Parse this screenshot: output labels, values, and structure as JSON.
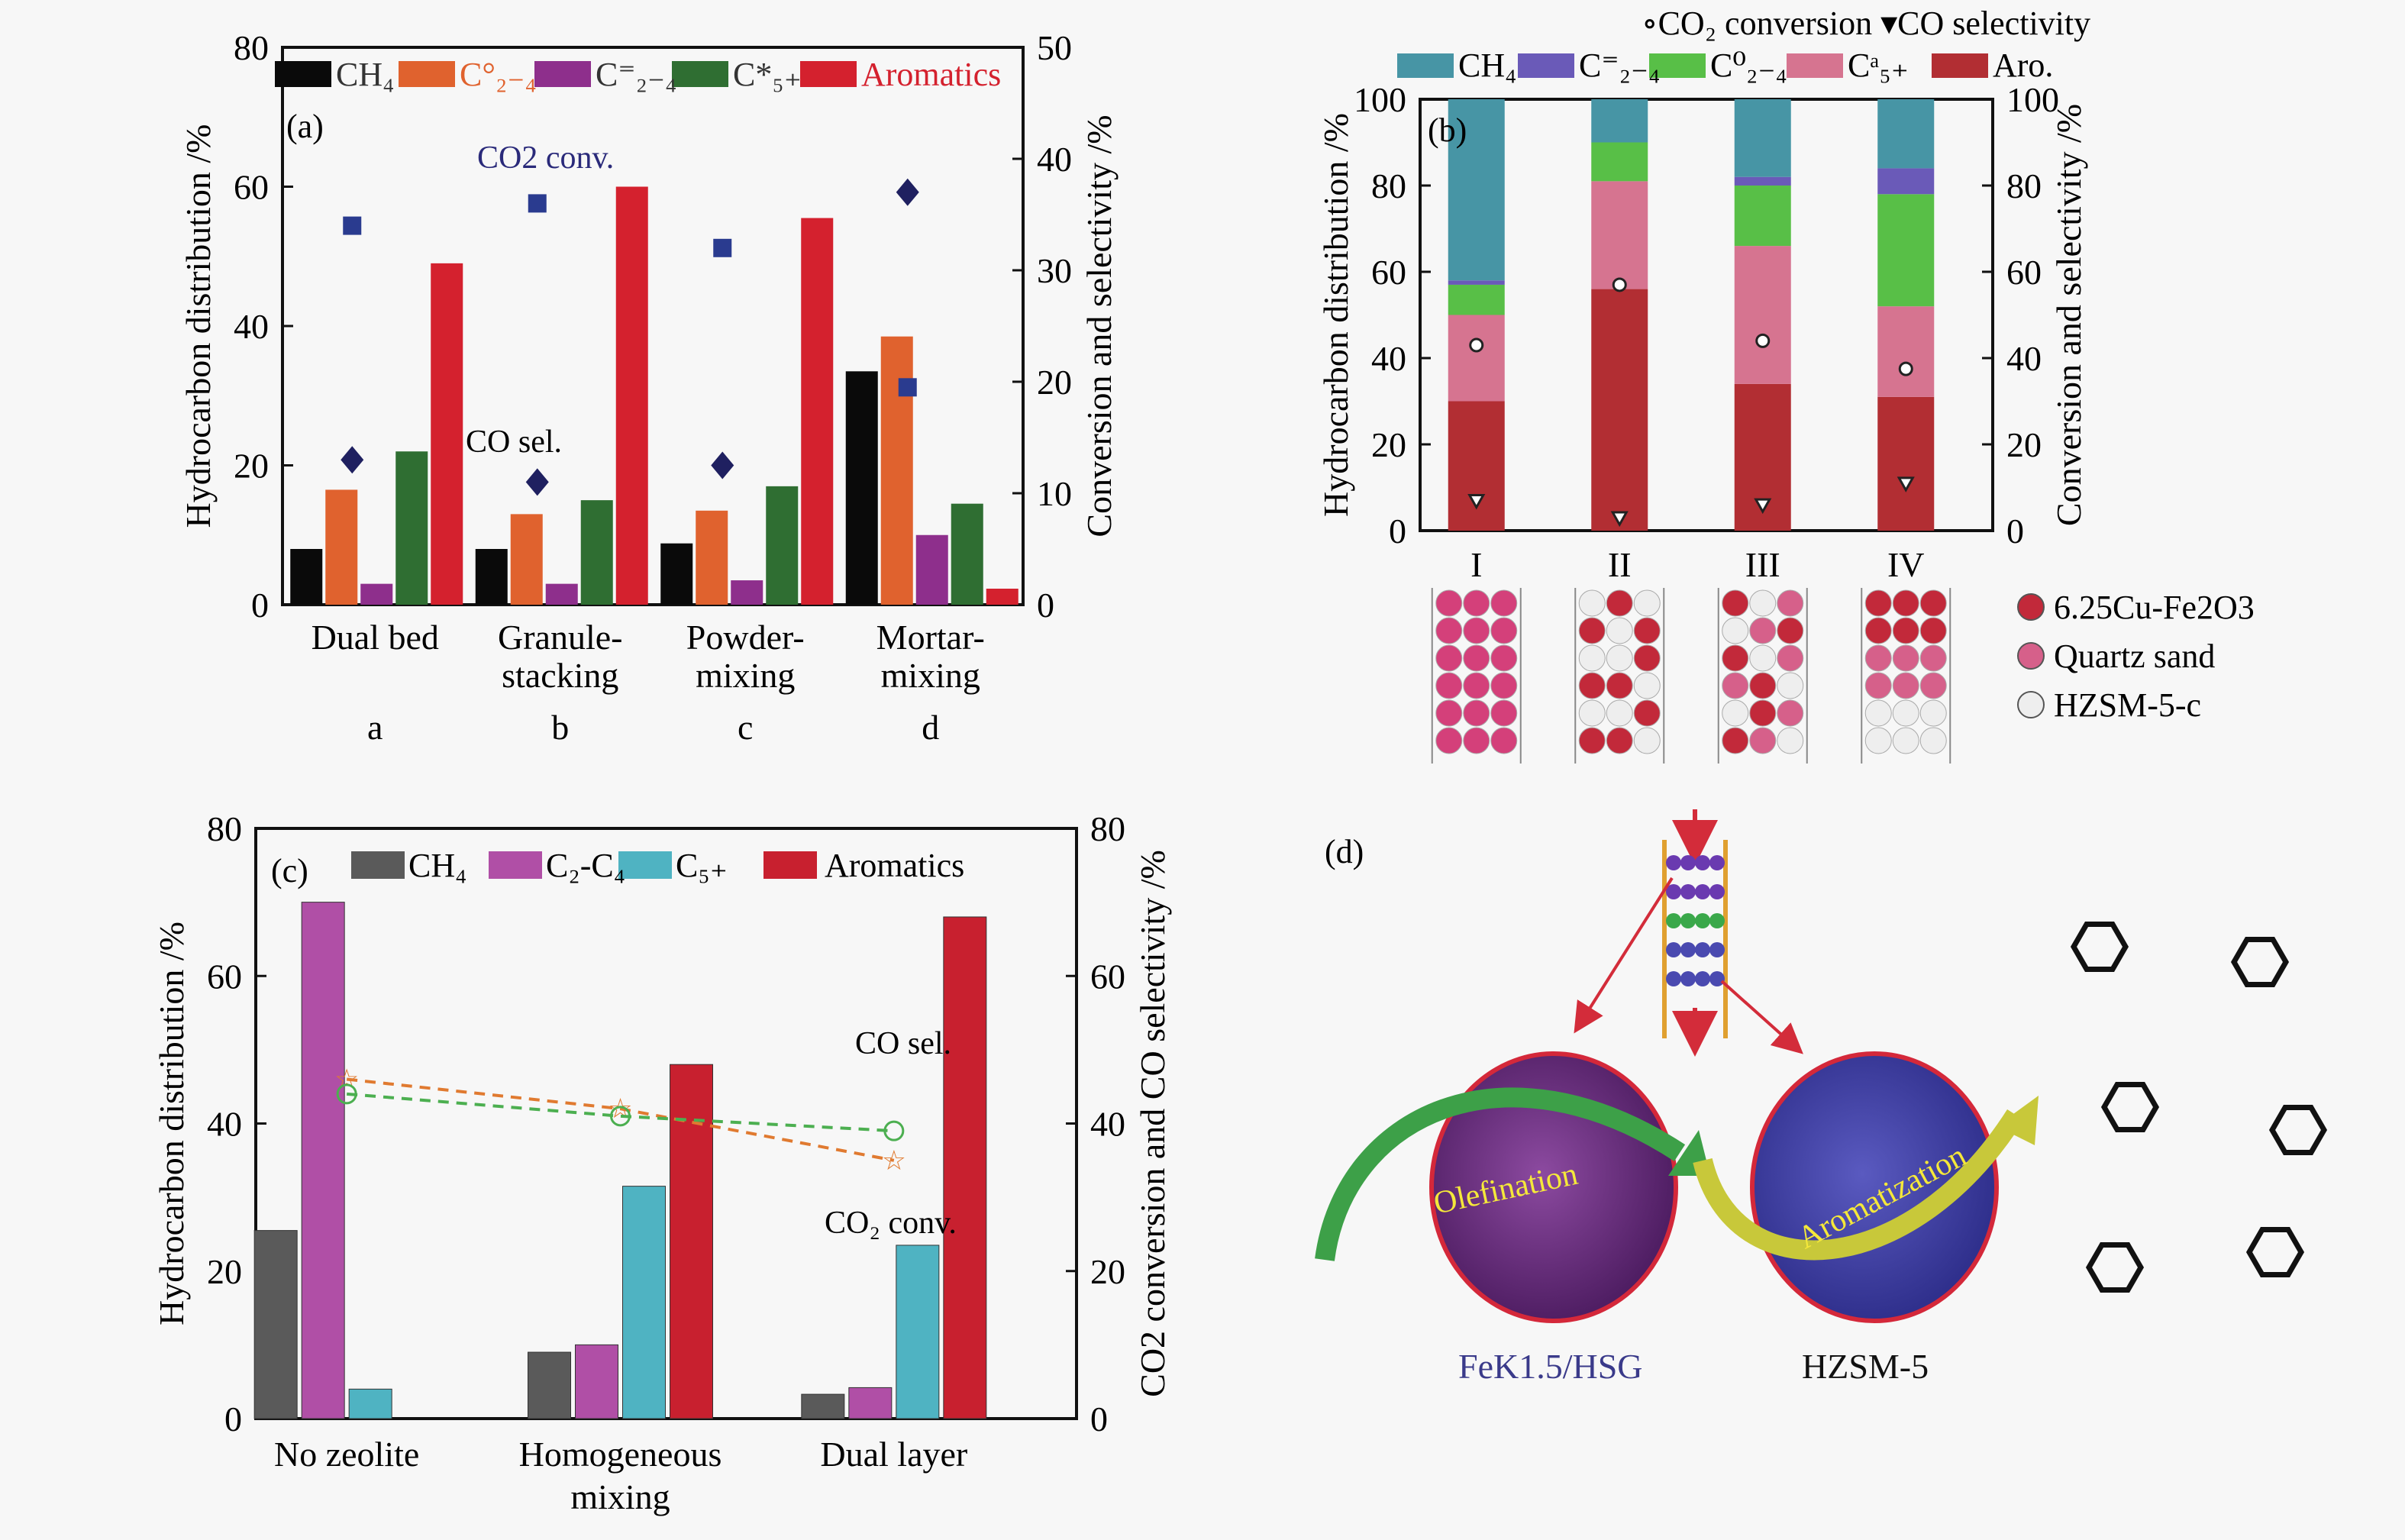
{
  "chart_data": [
    {
      "id": "a",
      "type": "bar",
      "panel_label": "(a)",
      "categories": [
        "Dual bed",
        "Granule-stacking",
        "Powder-mixing",
        "Mortar-mixing"
      ],
      "category_lines": [
        [
          "Dual bed"
        ],
        [
          "Granule-",
          "stacking"
        ],
        [
          "Powder-",
          "mixing"
        ],
        [
          "Mortar-",
          "mixing"
        ]
      ],
      "sub_labels": [
        "a",
        "b",
        "c",
        "d"
      ],
      "ylabel": "Hydrocarbon distribution /%",
      "y2label": "Conversion and selectivity /%",
      "ylim": [
        0,
        80
      ],
      "yticks": [
        0,
        20,
        40,
        60,
        80
      ],
      "y2lim": [
        0,
        50
      ],
      "y2ticks": [
        0,
        10,
        20,
        30,
        40,
        50
      ],
      "legend_position": "top",
      "series": [
        {
          "name": "CH4",
          "color": "#0a0a0a",
          "values": [
            8,
            8,
            8.8,
            33.5
          ]
        },
        {
          "name": "C2-4 paraffin (o)",
          "color": "#e0622e",
          "values": [
            16.5,
            13,
            13.5,
            38.5
          ]
        },
        {
          "name": "C2-4 olefin (=)",
          "color": "#8e2f8c",
          "values": [
            3,
            3,
            3.5,
            10
          ]
        },
        {
          "name": "C5+ (*)",
          "color": "#2f6e32",
          "values": [
            22,
            15,
            17,
            14.5
          ]
        },
        {
          "name": "Aromatics",
          "color": "#d4212e",
          "values": [
            49,
            60,
            55.5,
            2.3
          ]
        }
      ],
      "markers": [
        {
          "name": "CO2 conversion",
          "shape": "square",
          "color": "#2a3b8f",
          "axis": "right",
          "values": [
            34,
            36,
            32,
            19.5
          ]
        },
        {
          "name": "CO selectivity",
          "shape": "diamond",
          "color": "#1f2060",
          "axis": "right",
          "values": [
            13,
            11,
            12.5,
            37
          ]
        }
      ],
      "annotations": [
        "CO2 conv.",
        "CO sel."
      ]
    },
    {
      "id": "b",
      "type": "bar",
      "stacked": true,
      "panel_label": "(b)",
      "categories": [
        "I",
        "II",
        "III",
        "IV"
      ],
      "ylabel": "Hydrocarbon distribution /%",
      "y2label": "Conversion and selectivity /%",
      "ylim": [
        0,
        100
      ],
      "yticks": [
        0,
        20,
        40,
        60,
        80,
        100
      ],
      "y2lim": [
        0,
        100
      ],
      "y2ticks": [
        0,
        20,
        40,
        60,
        80,
        100
      ],
      "legend_position": "top",
      "marker_legend": [
        "CO2 conversion",
        "CO selectivity"
      ],
      "series": [
        {
          "name": "Aro.",
          "color": "#b22e33",
          "values": [
            30,
            56,
            34,
            31
          ]
        },
        {
          "name": "C5+ a",
          "color": "#d67490",
          "values": [
            20,
            25,
            32,
            21
          ]
        },
        {
          "name": "C2-4 0",
          "color": "#58bf47",
          "values": [
            7,
            9,
            14,
            26
          ]
        },
        {
          "name": "C2-4 =",
          "color": "#6a5ab8",
          "values": [
            1,
            0,
            2,
            6
          ]
        },
        {
          "name": "CH4",
          "color": "#4795a5",
          "values": [
            42,
            10,
            18,
            16
          ]
        }
      ],
      "markers": [
        {
          "name": "CO2 conversion",
          "shape": "circle",
          "axis": "right",
          "values": [
            43,
            57,
            44,
            37.5
          ]
        },
        {
          "name": "CO selectivity",
          "shape": "triangle-down",
          "axis": "right",
          "values": [
            7,
            3,
            6,
            11
          ]
        }
      ],
      "bed_legend": [
        "6.25Cu-Fe2O3",
        "Quartz sand",
        "HZSM-5-c"
      ]
    },
    {
      "id": "c",
      "type": "bar",
      "panel_label": "(c)",
      "categories": [
        "No zeolite",
        "Homogeneous mixing",
        "Dual layer"
      ],
      "category_lines": [
        [
          "No zeolite"
        ],
        [
          "Homogeneous",
          "mixing"
        ],
        [
          "Dual layer"
        ]
      ],
      "ylabel": "Hydrocarbon distribution /%",
      "y2label": "CO2 conversion and CO selectivity /%",
      "ylim": [
        0,
        80
      ],
      "yticks": [
        0,
        20,
        40,
        60,
        80
      ],
      "y2lim": [
        0,
        80
      ],
      "y2ticks": [
        0,
        20,
        40,
        60,
        80
      ],
      "legend_position": "top",
      "series": [
        {
          "name": "CH4",
          "color": "#5a5a5a",
          "values": [
            25.5,
            9,
            3.3
          ]
        },
        {
          "name": "C2-C4",
          "color": "#b04fa6",
          "values": [
            70,
            10,
            4.2
          ]
        },
        {
          "name": "C5+",
          "color": "#4fb3c2",
          "values": [
            4,
            31.5,
            23.5
          ]
        },
        {
          "name": "Aromatics",
          "color": "#c8202f",
          "values": [
            0,
            48,
            68
          ]
        }
      ],
      "lines": [
        {
          "name": "CO2 conv.",
          "shape": "star",
          "color": "#e07a30",
          "values": [
            46,
            42,
            35
          ]
        },
        {
          "name": "CO sel.",
          "shape": "pentagon",
          "color": "#4caf50",
          "values": [
            44,
            41,
            39
          ]
        }
      ]
    }
  ],
  "diagram_d": {
    "panel_label": "(d)",
    "process_labels": [
      "Olefination",
      "Aromatization"
    ],
    "catalyst_labels": [
      "FeK1.5/HSG",
      "HZSM-5"
    ]
  }
}
